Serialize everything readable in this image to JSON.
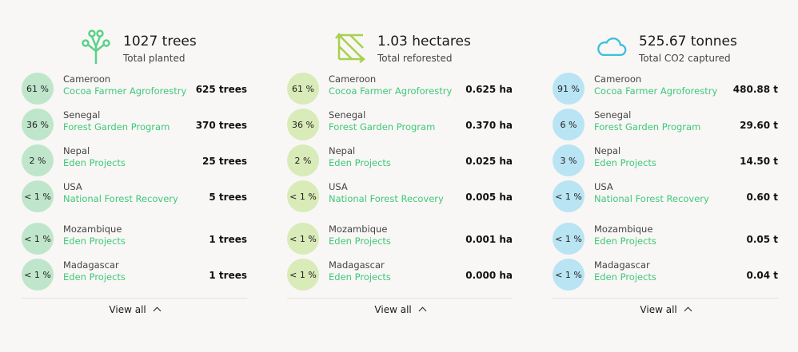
{
  "columns": [
    {
      "title": "1027 trees",
      "subtitle": "Total planted",
      "icon": "sprout-icon",
      "circle_color": "#bfe6cb",
      "rows": [
        {
          "pct": "61 %",
          "country": "Cameroon",
          "project": "Cocoa Farmer Agroforestry",
          "value": "625 trees"
        },
        {
          "pct": "36 %",
          "country": "Senegal",
          "project": "Forest Garden Program",
          "value": "370 trees"
        },
        {
          "pct": "2 %",
          "country": "Nepal",
          "project": "Eden Projects",
          "value": "25 trees"
        },
        {
          "pct": "< 1 %",
          "country": "USA",
          "project": "National Forest Recovery",
          "value": "5 trees"
        },
        {
          "pct": "< 1 %",
          "country": "Mozambique",
          "project": "Eden Projects",
          "value": "1 trees"
        },
        {
          "pct": "< 1 %",
          "country": "Madagascar",
          "project": "Eden Projects",
          "value": "1 trees"
        }
      ],
      "view_all": "View all"
    },
    {
      "title": "1.03 hectares",
      "subtitle": "Total reforested",
      "icon": "area-expand-icon",
      "circle_color": "#d9ebb8",
      "rows": [
        {
          "pct": "61 %",
          "country": "Cameroon",
          "project": "Cocoa Farmer Agroforestry",
          "value": "0.625 ha"
        },
        {
          "pct": "36 %",
          "country": "Senegal",
          "project": "Forest Garden Program",
          "value": "0.370 ha"
        },
        {
          "pct": "2 %",
          "country": "Nepal",
          "project": "Eden Projects",
          "value": "0.025 ha"
        },
        {
          "pct": "< 1 %",
          "country": "USA",
          "project": "National Forest Recovery",
          "value": "0.005 ha"
        },
        {
          "pct": "< 1 %",
          "country": "Mozambique",
          "project": "Eden Projects",
          "value": "0.001 ha"
        },
        {
          "pct": "< 1 %",
          "country": "Madagascar",
          "project": "Eden Projects",
          "value": "0.000 ha"
        }
      ],
      "view_all": "View all"
    },
    {
      "title": "525.67 tonnes",
      "subtitle": "Total CO2 captured",
      "icon": "cloud-icon",
      "circle_color": "#b9e4f3",
      "rows": [
        {
          "pct": "91 %",
          "country": "Cameroon",
          "project": "Cocoa Farmer Agroforestry",
          "value": "480.88 t"
        },
        {
          "pct": "6 %",
          "country": "Senegal",
          "project": "Forest Garden Program",
          "value": "29.60 t"
        },
        {
          "pct": "3 %",
          "country": "Nepal",
          "project": "Eden Projects",
          "value": "14.50 t"
        },
        {
          "pct": "< 1 %",
          "country": "USA",
          "project": "National Forest Recovery",
          "value": "0.60 t"
        },
        {
          "pct": "< 1 %",
          "country": "Mozambique",
          "project": "Eden Projects",
          "value": "0.05 t"
        },
        {
          "pct": "< 1 %",
          "country": "Madagascar",
          "project": "Eden Projects",
          "value": "0.04 t"
        }
      ],
      "view_all": "View all"
    }
  ]
}
